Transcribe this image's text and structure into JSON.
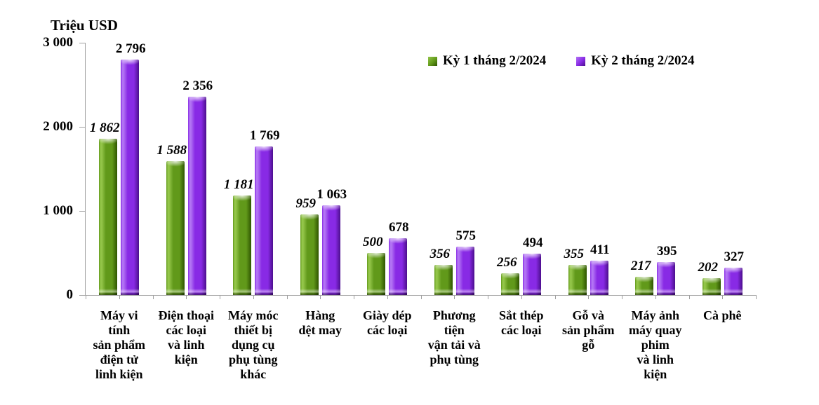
{
  "chart_data": {
    "type": "bar",
    "ylabel": "Triệu USD",
    "ylim": [
      0,
      3000
    ],
    "yticks": [
      0,
      1000,
      2000,
      3000
    ],
    "ytick_labels": [
      "0",
      "1 000",
      "2 000",
      "3 000"
    ],
    "grid": false,
    "legend_position": "top",
    "categories": [
      "Máy vi tính sản phẩm điện tử linh kiện",
      "Điện thoại các loại và linh kiện",
      "Máy móc thiết bị dụng cụ phụ tùng khác",
      "Hàng dệt may",
      "Giày dép các loại",
      "Phương tiện vận tải và phụ tùng",
      "Sắt thép các loại",
      "Gỗ và sản phẩm gỗ",
      "Máy ảnh máy quay phim và linh kiện",
      "Cà phê"
    ],
    "category_label_lines": [
      [
        "Máy vi",
        "tính",
        "sản phẩm",
        "điện tử",
        "linh kiện"
      ],
      [
        "Điện thoại",
        "các loại",
        "và linh",
        "kiện"
      ],
      [
        "Máy móc",
        "thiết bị",
        "dụng cụ",
        "phụ tùng",
        "khác"
      ],
      [
        "Hàng",
        "dệt may"
      ],
      [
        "Giày dép",
        "các loại"
      ],
      [
        "Phương",
        "tiện",
        "vận tải và",
        "phụ tùng"
      ],
      [
        "Sắt thép",
        "các loại"
      ],
      [
        "Gỗ và",
        "sản phẩm",
        "gỗ"
      ],
      [
        "Máy ảnh",
        "máy quay",
        "phim",
        "và linh",
        "kiện"
      ],
      [
        "Cà phê"
      ]
    ],
    "series": [
      {
        "name": "Kỳ 1 tháng 2/2024",
        "values": [
          1862,
          1588,
          1181,
          959,
          500,
          356,
          256,
          355,
          217,
          202
        ],
        "color": "#61991a",
        "color_light": "#93c549",
        "color_dark": "#2f5500",
        "value_label_style": "bold-italic"
      },
      {
        "name": "Kỳ 2 tháng 2/2024",
        "values": [
          2796,
          2356,
          1769,
          1063,
          678,
          575,
          494,
          411,
          395,
          327
        ],
        "color": "#882ae5",
        "color_light": "#b273f4",
        "color_dark": "#4c0e8d",
        "value_label_style": "bold"
      }
    ],
    "number_format": "space-thousands",
    "axis_color": "#a0a0a0"
  }
}
